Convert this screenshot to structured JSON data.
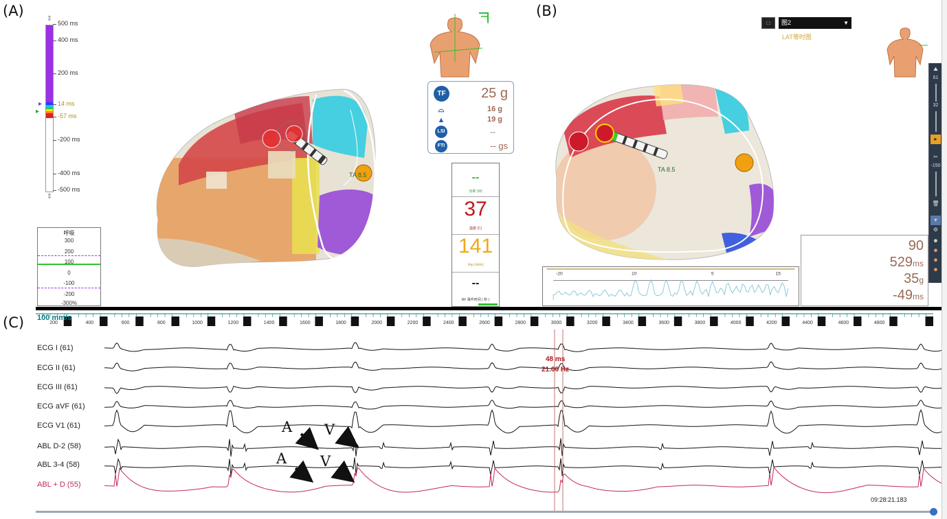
{
  "panels": {
    "a_label": "(A)",
    "b_label": "(B)",
    "c_label": "(C)"
  },
  "lat_scale": {
    "ticks": [
      "500 ms",
      "400 ms",
      "200 ms",
      "14 ms",
      "-57 ms",
      "-200 ms",
      "-400 ms",
      "-500 ms"
    ]
  },
  "respiration": {
    "title": "呼吸",
    "values": [
      "300",
      "200",
      "100",
      "0",
      "-100",
      "-200",
      "-300%"
    ]
  },
  "contact_force": {
    "tf_icon": "TF",
    "tf_value": "25 g",
    "lateral_value": "16 g",
    "axial_value": "19 g",
    "lsi_icon": "LSI",
    "lsi_value": "--",
    "fti_icon": "FTI",
    "fti_value": "-- gs"
  },
  "ablation": {
    "power_value": "--",
    "power_label": "功率 (W)",
    "temp_value": "37",
    "temp_label": "温度 (C)",
    "imp_value": "141",
    "imp_label": "Imp (ohm)",
    "rf_value": "--",
    "rf_label": "RF 事件时间 ( 秒 )"
  },
  "catheter_tag": "TA 8.5",
  "view_button": "□",
  "map_dropdown": "图2",
  "lat_map_label": "LAT等时图",
  "toolbar": {
    "num1": "61",
    "num2": "32",
    "num3": "-150"
  },
  "stats": {
    "v1": "90",
    "v2": "529",
    "v2_unit": "ms",
    "v3": "35",
    "v3_unit": "g",
    "v4": "-49",
    "v4_unit": "ms"
  },
  "mini_trace": {
    "ticks": [
      "-20",
      "10",
      "5",
      "15"
    ]
  },
  "ecg": {
    "speed": "100 mm/s",
    "ruler_ticks": [
      "200",
      "400",
      "600",
      "800",
      "1000",
      "1200",
      "1400",
      "1600",
      "1800",
      "2000",
      "2200",
      "2400",
      "2600",
      "2800",
      "3000",
      "3200",
      "3400",
      "3600",
      "3800",
      "4000",
      "4200",
      "4400",
      "4600",
      "4800"
    ],
    "channels": [
      "ECG I (61)",
      "ECG II (61)",
      "ECG III (61)",
      "ECG aVF (61)",
      "ECG V1 (61)",
      "ABL  D-2 (58)",
      "ABL  3-4 (58)",
      "ABL + D (55)"
    ],
    "caliper_ms": "48 ms",
    "caliper_hz": "21.00 Hz",
    "timestamp": "09:28:21.183",
    "annotation_a": "A",
    "annotation_v": "V"
  },
  "colors": {
    "purple": "#9b30e6",
    "trace": "#111111",
    "abl_trace": "#c0285a",
    "accent": "#9a6a55"
  }
}
